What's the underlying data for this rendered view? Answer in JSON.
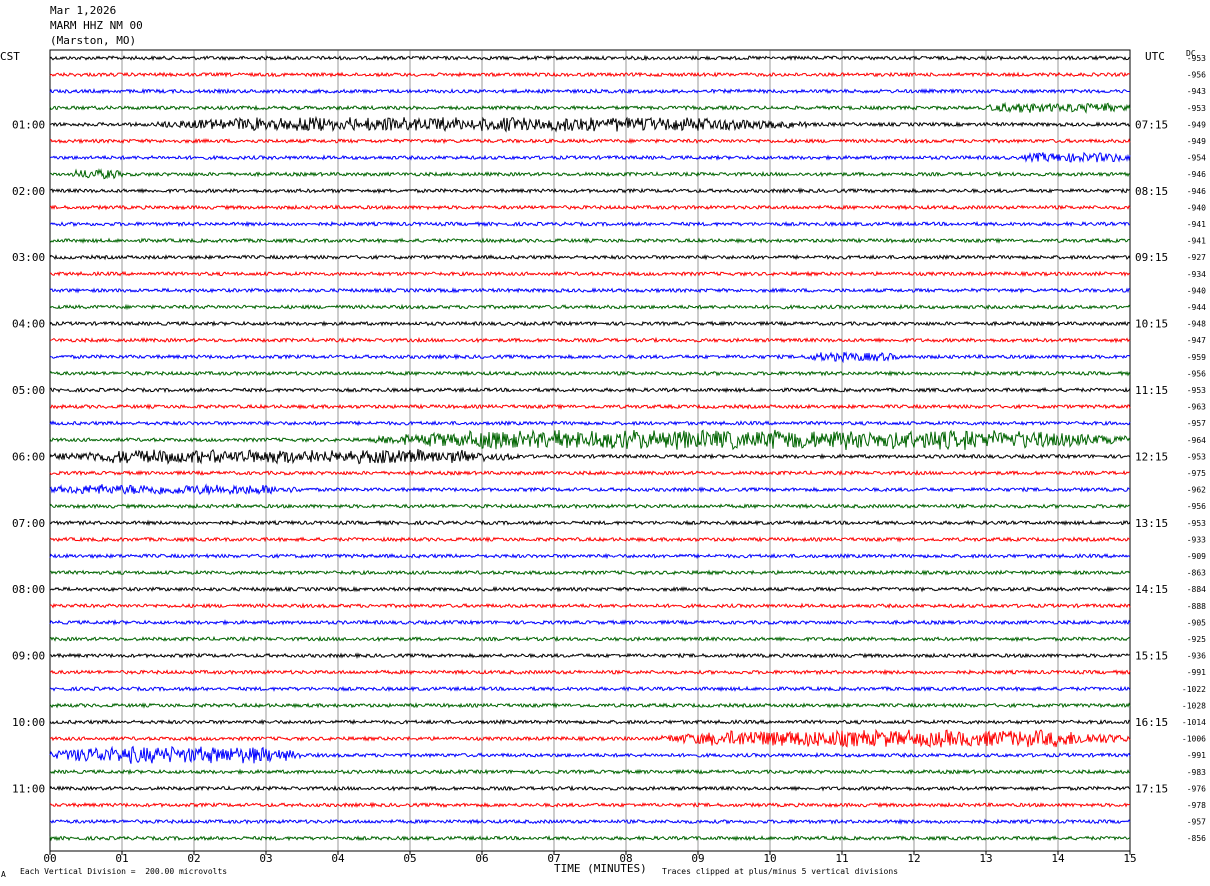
{
  "header": {
    "date": "Mar 1,2026",
    "station": "MARM HHZ NM 00",
    "location": "(Marston, MO)"
  },
  "axes": {
    "left_title": "CST",
    "right_title": "UTC",
    "dc_title": "DC",
    "x_title": "TIME (MINUTES)"
  },
  "footer": {
    "scale_prefix": "Each Vertical Division =",
    "scale_value": "200.00 microvolts",
    "clip_note": "Traces clipped at plus/minus 5 vertical divisions",
    "corner_mark": "A"
  },
  "colors": {
    "trace_cycle": [
      "#000000",
      "#ff0000",
      "#0000ff",
      "#006400"
    ],
    "grid": "#000000",
    "background": "#ffffff"
  },
  "chart_data": {
    "type": "line",
    "title": "",
    "xlabel": "TIME (MINUTES)",
    "xlim": [
      0,
      15
    ],
    "x_ticks": [
      "00",
      "01",
      "02",
      "03",
      "04",
      "05",
      "06",
      "07",
      "08",
      "09",
      "10",
      "11",
      "12",
      "13",
      "14",
      "15"
    ],
    "minutes_per_trace": 15,
    "trace_count": 48,
    "left_time_labels": [
      {
        "trace": 4,
        "label": "01:00"
      },
      {
        "trace": 8,
        "label": "02:00"
      },
      {
        "trace": 12,
        "label": "03:00"
      },
      {
        "trace": 16,
        "label": "04:00"
      },
      {
        "trace": 20,
        "label": "05:00"
      },
      {
        "trace": 24,
        "label": "06:00"
      },
      {
        "trace": 28,
        "label": "07:00"
      },
      {
        "trace": 32,
        "label": "08:00"
      },
      {
        "trace": 36,
        "label": "09:00"
      },
      {
        "trace": 40,
        "label": "10:00"
      },
      {
        "trace": 44,
        "label": "11:00"
      }
    ],
    "right_time_labels": [
      {
        "trace": 4,
        "label": "07:15"
      },
      {
        "trace": 8,
        "label": "08:15"
      },
      {
        "trace": 12,
        "label": "09:15"
      },
      {
        "trace": 16,
        "label": "10:15"
      },
      {
        "trace": 20,
        "label": "11:15"
      },
      {
        "trace": 24,
        "label": "12:15"
      },
      {
        "trace": 28,
        "label": "13:15"
      },
      {
        "trace": 32,
        "label": "14:15"
      },
      {
        "trace": 36,
        "label": "15:15"
      },
      {
        "trace": 40,
        "label": "16:15"
      },
      {
        "trace": 44,
        "label": "17:15"
      }
    ],
    "dc_offsets": [
      "-953",
      "-956",
      "-943",
      "-953",
      "-949",
      "-949",
      "-954",
      "-946",
      "-946",
      "-940",
      "-941",
      "-941",
      "-927",
      "-934",
      "-940",
      "-944",
      "-948",
      "-947",
      "-959",
      "-956",
      "-953",
      "-963",
      "-957",
      "-964",
      "-953",
      "-975",
      "-962",
      "-956",
      "-953",
      "-933",
      "-909",
      "-863",
      "-884",
      "-888",
      "-905",
      "-925",
      "-936",
      "-991",
      "-1022",
      "-1028",
      "-1014",
      "-1006",
      "-991",
      "-983",
      "-976",
      "-978",
      "-957",
      "-856"
    ],
    "events": [
      {
        "trace": 3,
        "start_min": 13.0,
        "end_min": 15.0,
        "amplitude": 1.6
      },
      {
        "trace": 4,
        "start_min": 1.5,
        "end_min": 10.5,
        "amplitude": 2.6
      },
      {
        "trace": 6,
        "start_min": 13.5,
        "end_min": 15.0,
        "amplitude": 1.7
      },
      {
        "trace": 7,
        "start_min": 0.3,
        "end_min": 1.0,
        "amplitude": 1.7
      },
      {
        "trace": 18,
        "start_min": 10.5,
        "end_min": 11.8,
        "amplitude": 1.4
      },
      {
        "trace": 23,
        "start_min": 4.5,
        "end_min": 15.0,
        "amplitude": 4.0
      },
      {
        "trace": 24,
        "start_min": 0.0,
        "end_min": 6.5,
        "amplitude": 2.6
      },
      {
        "trace": 26,
        "start_min": 0.0,
        "end_min": 3.5,
        "amplitude": 1.8
      },
      {
        "trace": 41,
        "start_min": 8.5,
        "end_min": 15.0,
        "amplitude": 3.4
      },
      {
        "trace": 42,
        "start_min": 0.0,
        "end_min": 3.5,
        "amplitude": 3.4
      }
    ]
  }
}
